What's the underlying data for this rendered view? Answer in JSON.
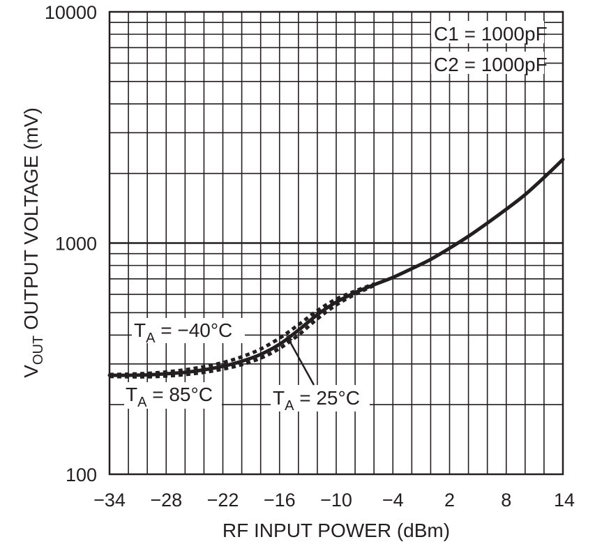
{
  "chart_data": {
    "type": "line",
    "xlabel": "RF INPUT POWER (dBm)",
    "ylabel": {
      "prefix": "V",
      "subscript": "OUT",
      "rest": " OUTPUT VOLTAGE (mV)"
    },
    "xlim": [
      -34,
      14
    ],
    "ylim": [
      100,
      10000
    ],
    "yscale": "log",
    "grid": true,
    "x_ticks": [
      -34,
      -28,
      -22,
      -16,
      -10,
      -4,
      2,
      8,
      14
    ],
    "x_tick_labels": [
      "−34",
      "−28",
      "−22",
      "−16",
      "−10",
      "−4",
      "2",
      "8",
      "14"
    ],
    "y_ticks": [
      100,
      1000,
      10000
    ],
    "y_tick_labels": [
      "100",
      "1000",
      "10000"
    ],
    "series": [
      {
        "name": "T_A = 25°C",
        "style": "solid",
        "x": [
          -34,
          -32,
          -30,
          -28,
          -26,
          -24,
          -22,
          -20,
          -18,
          -16,
          -14,
          -12,
          -10,
          -8,
          -6,
          -4,
          -2,
          0,
          2,
          4,
          6,
          8,
          10,
          12,
          14
        ],
        "y": [
          268,
          268,
          269,
          272,
          276,
          283,
          293,
          308,
          330,
          365,
          420,
          490,
          555,
          610,
          660,
          710,
          775,
          850,
          950,
          1070,
          1220,
          1400,
          1620,
          1920,
          2300
        ]
      },
      {
        "name": "T_A = −40°C",
        "style": "dashed",
        "x": [
          -34,
          -32,
          -30,
          -28,
          -26,
          -24,
          -22,
          -20,
          -18,
          -16,
          -14,
          -12,
          -10,
          -8,
          -6
        ],
        "y": [
          270,
          271,
          273,
          277,
          283,
          292,
          304,
          322,
          348,
          388,
          443,
          510,
          572,
          620,
          665
        ]
      },
      {
        "name": "T_A = 85°C",
        "style": "dashed",
        "x": [
          -34,
          -32,
          -30,
          -28,
          -26,
          -24,
          -22,
          -20,
          -18,
          -16,
          -14,
          -12,
          -10,
          -8,
          -6
        ],
        "y": [
          265,
          264,
          264,
          266,
          270,
          276,
          285,
          298,
          318,
          350,
          400,
          470,
          540,
          600,
          655
        ]
      }
    ],
    "annotations": [
      {
        "text_main": "T",
        "text_sub": "A",
        "text_rest": " = −40°C"
      },
      {
        "text_main": "T",
        "text_sub": "A",
        "text_rest": " = 85°C"
      },
      {
        "text_main": "T",
        "text_sub": "A",
        "text_rest": " = 25°C"
      },
      {
        "text": "C1 = 1000pF"
      },
      {
        "text": "C2 = 1000pF"
      }
    ]
  },
  "colors": {
    "line": "#231f20",
    "grid": "#231f20",
    "background": "#ffffff"
  }
}
